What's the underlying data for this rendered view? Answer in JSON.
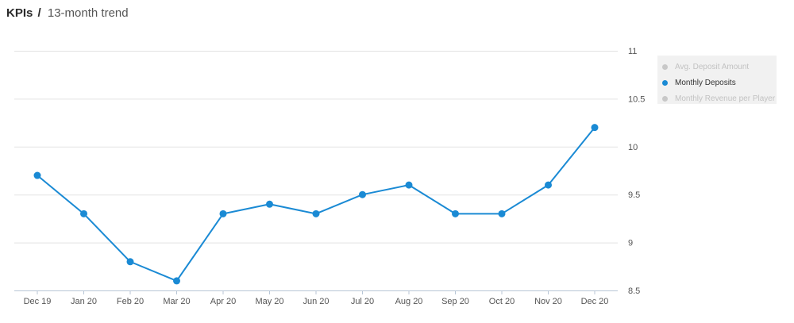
{
  "header": {
    "title": "KPIs",
    "separator": "/",
    "subtitle": "13-month trend"
  },
  "legend": {
    "items": [
      {
        "label": "Avg. Deposit Amount",
        "color": "#c8c8c8",
        "active": false
      },
      {
        "label": "Monthly Deposits",
        "color": "#1a8ad4",
        "active": true
      },
      {
        "label": "Monthly Revenue per Player",
        "color": "#c8c8c8",
        "active": false
      }
    ]
  },
  "chart_data": {
    "type": "line",
    "title": "",
    "xlabel": "",
    "ylabel": "",
    "categories": [
      "Dec 19",
      "Jan 20",
      "Feb 20",
      "Mar 20",
      "Apr 20",
      "May 20",
      "Jun 20",
      "Jul 20",
      "Aug 20",
      "Sep 20",
      "Oct 20",
      "Nov 20",
      "Dec 20"
    ],
    "series": [
      {
        "name": "Monthly Deposits",
        "color": "#1a8ad4",
        "values": [
          9.7,
          9.3,
          8.8,
          8.6,
          9.3,
          9.4,
          9.3,
          9.5,
          9.6,
          9.3,
          9.3,
          9.6,
          10.2
        ]
      }
    ],
    "ylim": [
      8.5,
      11
    ],
    "yticks": [
      "8.5",
      "9",
      "9.5",
      "10",
      "10.5",
      "11"
    ],
    "y_axis_side": "right",
    "grid": true,
    "legend_position": "right"
  }
}
